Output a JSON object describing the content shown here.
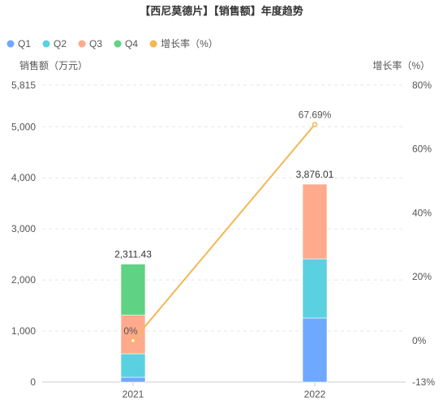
{
  "chart_data": {
    "type": "bar",
    "title": "【西尼莫德片】【销售额】年度趋势",
    "categories": [
      "2021",
      "2022"
    ],
    "series": [
      {
        "name": "Q1",
        "type": "bar",
        "values": [
          95,
          1255
        ]
      },
      {
        "name": "Q2",
        "type": "bar",
        "values": [
          460,
          1160
        ]
      },
      {
        "name": "Q3",
        "type": "bar",
        "values": [
          760,
          1461.01
        ]
      },
      {
        "name": "Q4",
        "type": "bar",
        "values": [
          996.43,
          0
        ]
      },
      {
        "name": "增长率（%）",
        "type": "line",
        "axis": "right",
        "values": [
          0,
          67.69
        ],
        "labels": [
          "0%",
          "67.69%"
        ]
      }
    ],
    "totals": [
      "2,311.43",
      "3,876.01"
    ],
    "ylabel": "销售额（万元）",
    "ylabel_right": "增长率（%）",
    "ylim": [
      0,
      5815
    ],
    "y_ticks": [
      "0",
      "1,000",
      "2,000",
      "3,000",
      "4,000",
      "5,000",
      "5,815"
    ],
    "y_tick_values": [
      0,
      1000,
      2000,
      3000,
      4000,
      5000,
      5815
    ],
    "ylim_right": [
      -13,
      80
    ],
    "y_right_ticks": [
      "-13%",
      "0%",
      "20%",
      "40%",
      "60%",
      "80%"
    ],
    "y_right_tick_values": [
      -13,
      0,
      20,
      40,
      60,
      80
    ],
    "stacked": true,
    "legend_position": "top-left",
    "grid": true,
    "colors": {
      "Q1": "#6fa8ff",
      "Q2": "#5ad1e0",
      "Q3": "#ffaa8c",
      "Q4": "#5fd383",
      "增长率（%）": "#f5b655"
    }
  }
}
